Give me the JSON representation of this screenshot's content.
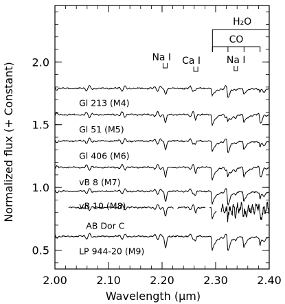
{
  "chart_data": {
    "type": "line",
    "title": "",
    "xlabel": "Wavelength (μm)",
    "ylabel": "Normalized flux (+ Constant)",
    "xlim": [
      2.0,
      2.4
    ],
    "ylim": [
      0.35,
      2.45
    ],
    "x_ticks": [
      2.0,
      2.1,
      2.2,
      2.3,
      2.4
    ],
    "x_tick_labels": [
      "2.00",
      "2.10",
      "2.20",
      "2.30",
      "2.40"
    ],
    "y_ticks": [
      0.5,
      1.0,
      1.5,
      2.0
    ],
    "y_tick_labels": [
      "0.5",
      "1.0",
      "1.5",
      "2.0"
    ],
    "grid": false,
    "series": [
      {
        "name": "Gl 213 (M4)",
        "offset": 1.79
      },
      {
        "name": "Gl 51 (M5)",
        "offset": 1.58
      },
      {
        "name": "Gl 406 (M6)",
        "offset": 1.37
      },
      {
        "name": "vB 8 (M7)",
        "offset": 1.16
      },
      {
        "name": "vB 10 (M8)",
        "offset": 0.97
      },
      {
        "name": "AB Dor C",
        "offset": 0.84
      },
      {
        "name": "LP 944-20 (M9)",
        "offset": 0.61
      }
    ],
    "annotations": [
      {
        "text": "Na I",
        "x": 2.207
      },
      {
        "text": "Ca I",
        "x": 2.263
      },
      {
        "text": "H₂O",
        "x_range": [
          2.294,
          2.4
        ]
      },
      {
        "text": "CO",
        "x_range": [
          2.294,
          2.38
        ],
        "edges": [
          2.294,
          2.323,
          2.353,
          2.383
        ]
      },
      {
        "text": "Na I",
        "x": 2.337
      }
    ]
  }
}
